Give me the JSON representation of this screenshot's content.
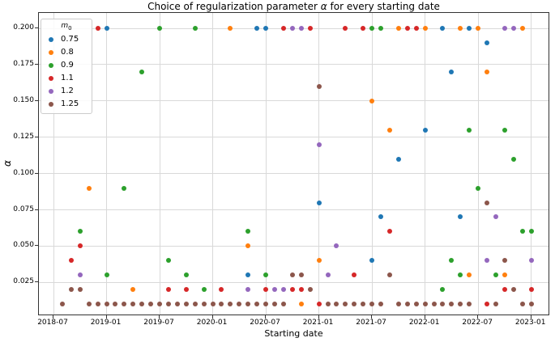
{
  "title": {
    "prefix": "Choice of regularization parameter ",
    "alpha": "α",
    "suffix": " for every starting date"
  },
  "xlabel": "Starting date",
  "ylabel": "α",
  "legend": {
    "title_main": "m",
    "title_sub": "0"
  },
  "chart_data": {
    "type": "scatter",
    "title": "Choice of regularization parameter α for every starting date",
    "xlabel": "Starting date",
    "ylabel": "α",
    "grid": true,
    "legend_position": "upper left",
    "legend_title": "m0",
    "x_tick_labels": [
      "2018-07",
      "2019-01",
      "2019-07",
      "2020-01",
      "2020-07",
      "2021-01",
      "2021-07",
      "2022-01",
      "2022-07",
      "2023-01"
    ],
    "y_tick_labels": [
      "0.200",
      "0.175",
      "0.150",
      "0.125",
      "0.100",
      "0.075",
      "0.050",
      "0.025"
    ],
    "y_tick_values": [
      0.2,
      0.175,
      0.15,
      0.125,
      0.1,
      0.075,
      0.05,
      0.025
    ],
    "xlim_months_from_2018_07": [
      -1.6,
      56.2
    ],
    "ylim": [
      0.002,
      0.2105
    ],
    "series": [
      {
        "name": "0.75",
        "color": "#1f77b4",
        "points": [
          [
            "2019-01",
            0.2
          ],
          [
            "2020-05",
            0.03
          ],
          [
            "2020-06",
            0.2
          ],
          [
            "2020-07",
            0.2
          ],
          [
            "2021-01",
            0.08
          ],
          [
            "2021-07",
            0.04
          ],
          [
            "2021-08",
            0.07
          ],
          [
            "2021-10",
            0.11
          ],
          [
            "2022-01",
            0.13
          ],
          [
            "2022-03",
            0.2
          ],
          [
            "2022-04",
            0.17
          ],
          [
            "2022-05",
            0.07
          ],
          [
            "2022-06",
            0.2
          ],
          [
            "2022-08",
            0.19
          ]
        ]
      },
      {
        "name": "0.8",
        "color": "#ff7f0e",
        "points": [
          [
            "2018-11",
            0.09
          ],
          [
            "2019-04",
            0.02
          ],
          [
            "2020-03",
            0.2
          ],
          [
            "2020-05",
            0.05
          ],
          [
            "2020-11",
            0.01
          ],
          [
            "2021-01",
            0.04
          ],
          [
            "2021-07",
            0.15
          ],
          [
            "2021-09",
            0.13
          ],
          [
            "2021-10",
            0.2
          ],
          [
            "2022-01",
            0.2
          ],
          [
            "2022-05",
            0.2
          ],
          [
            "2022-06",
            0.03
          ],
          [
            "2022-07",
            0.2
          ],
          [
            "2022-08",
            0.17
          ],
          [
            "2022-10",
            0.03
          ],
          [
            "2022-12",
            0.2
          ]
        ]
      },
      {
        "name": "0.9",
        "color": "#2ca02c",
        "points": [
          [
            "2018-10",
            0.06
          ],
          [
            "2019-01",
            0.03
          ],
          [
            "2019-03",
            0.09
          ],
          [
            "2019-05",
            0.17
          ],
          [
            "2019-07",
            0.2
          ],
          [
            "2019-08",
            0.04
          ],
          [
            "2019-10",
            0.03
          ],
          [
            "2019-11",
            0.2
          ],
          [
            "2019-12",
            0.02
          ],
          [
            "2020-05",
            0.06
          ],
          [
            "2020-07",
            0.03
          ],
          [
            "2021-07",
            0.2
          ],
          [
            "2021-08",
            0.2
          ],
          [
            "2022-03",
            0.02
          ],
          [
            "2022-04",
            0.04
          ],
          [
            "2022-05",
            0.03
          ],
          [
            "2022-06",
            0.13
          ],
          [
            "2022-07",
            0.09
          ],
          [
            "2022-09",
            0.03
          ],
          [
            "2022-10",
            0.13
          ],
          [
            "2022-11",
            0.11
          ],
          [
            "2022-12",
            0.06
          ],
          [
            "2023-01",
            0.06
          ]
        ]
      },
      {
        "name": "1.1",
        "color": "#d62728",
        "points": [
          [
            "2018-09",
            0.04
          ],
          [
            "2018-10",
            0.05
          ],
          [
            "2018-12",
            0.2
          ],
          [
            "2019-08",
            0.02
          ],
          [
            "2019-10",
            0.02
          ],
          [
            "2020-02",
            0.02
          ],
          [
            "2020-07",
            0.02
          ],
          [
            "2020-09",
            0.2
          ],
          [
            "2020-10",
            0.02
          ],
          [
            "2020-11",
            0.02
          ],
          [
            "2020-12",
            0.2
          ],
          [
            "2021-01",
            0.01
          ],
          [
            "2021-04",
            0.2
          ],
          [
            "2021-05",
            0.03
          ],
          [
            "2021-06",
            0.2
          ],
          [
            "2021-09",
            0.06
          ],
          [
            "2021-11",
            0.2
          ],
          [
            "2021-12",
            0.2
          ],
          [
            "2022-08",
            0.01
          ],
          [
            "2022-10",
            0.02
          ],
          [
            "2023-01",
            0.02
          ]
        ]
      },
      {
        "name": "1.2",
        "color": "#9467bd",
        "points": [
          [
            "2018-10",
            0.03
          ],
          [
            "2020-05",
            0.02
          ],
          [
            "2020-08",
            0.02
          ],
          [
            "2020-09",
            0.02
          ],
          [
            "2020-10",
            0.2
          ],
          [
            "2020-11",
            0.2
          ],
          [
            "2021-01",
            0.12
          ],
          [
            "2021-02",
            0.03
          ],
          [
            "2021-03",
            0.05
          ],
          [
            "2022-08",
            0.04
          ],
          [
            "2022-09",
            0.07
          ],
          [
            "2022-10",
            0.2
          ],
          [
            "2022-11",
            0.2
          ],
          [
            "2023-01",
            0.04
          ]
        ]
      },
      {
        "name": "1.25",
        "color": "#8c564b",
        "points": [
          [
            "2018-08",
            0.01
          ],
          [
            "2018-09",
            0.02
          ],
          [
            "2018-10",
            0.02
          ],
          [
            "2018-11",
            0.01
          ],
          [
            "2018-12",
            0.01
          ],
          [
            "2019-01",
            0.01
          ],
          [
            "2019-02",
            0.01
          ],
          [
            "2019-03",
            0.01
          ],
          [
            "2019-04",
            0.01
          ],
          [
            "2019-05",
            0.01
          ],
          [
            "2019-06",
            0.01
          ],
          [
            "2019-07",
            0.01
          ],
          [
            "2019-08",
            0.01
          ],
          [
            "2019-09",
            0.01
          ],
          [
            "2019-10",
            0.01
          ],
          [
            "2019-11",
            0.01
          ],
          [
            "2019-12",
            0.01
          ],
          [
            "2020-01",
            0.01
          ],
          [
            "2020-02",
            0.01
          ],
          [
            "2020-03",
            0.01
          ],
          [
            "2020-04",
            0.01
          ],
          [
            "2020-05",
            0.01
          ],
          [
            "2020-06",
            0.01
          ],
          [
            "2020-07",
            0.01
          ],
          [
            "2020-08",
            0.01
          ],
          [
            "2020-09",
            0.01
          ],
          [
            "2020-10",
            0.03
          ],
          [
            "2020-11",
            0.03
          ],
          [
            "2020-12",
            0.02
          ],
          [
            "2021-01",
            0.16
          ],
          [
            "2021-02",
            0.01
          ],
          [
            "2021-03",
            0.01
          ],
          [
            "2021-04",
            0.01
          ],
          [
            "2021-05",
            0.01
          ],
          [
            "2021-06",
            0.01
          ],
          [
            "2021-07",
            0.01
          ],
          [
            "2021-08",
            0.01
          ],
          [
            "2021-09",
            0.03
          ],
          [
            "2021-10",
            0.01
          ],
          [
            "2021-11",
            0.01
          ],
          [
            "2021-12",
            0.01
          ],
          [
            "2022-01",
            0.01
          ],
          [
            "2022-02",
            0.01
          ],
          [
            "2022-03",
            0.01
          ],
          [
            "2022-04",
            0.01
          ],
          [
            "2022-05",
            0.01
          ],
          [
            "2022-06",
            0.01
          ],
          [
            "2022-08",
            0.08
          ],
          [
            "2022-09",
            0.01
          ],
          [
            "2022-10",
            0.04
          ],
          [
            "2022-11",
            0.02
          ],
          [
            "2022-12",
            0.01
          ],
          [
            "2023-01",
            0.01
          ]
        ]
      }
    ]
  }
}
